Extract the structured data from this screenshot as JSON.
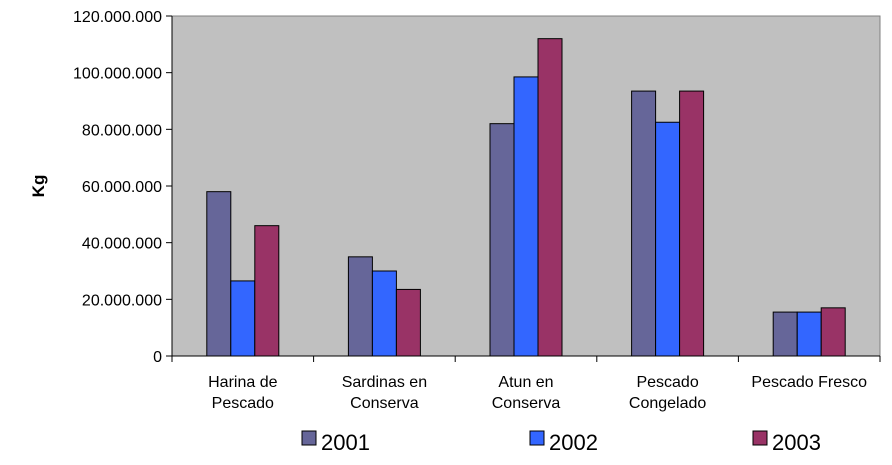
{
  "chart_data": {
    "type": "bar",
    "title": "",
    "xlabel": "",
    "ylabel": "Kg",
    "ylim": [
      0,
      120000000
    ],
    "yticks": [
      0,
      20000000,
      40000000,
      60000000,
      80000000,
      100000000,
      120000000
    ],
    "ytick_labels": [
      "0",
      "20.000.000",
      "40.000.000",
      "60.000.000",
      "80.000.000",
      "100.000.000",
      "120.000.000"
    ],
    "categories": [
      [
        "Harina de",
        "Pescado"
      ],
      [
        "Sardinas en",
        "Conserva"
      ],
      [
        "Atun en",
        "Conserva"
      ],
      [
        "Pescado",
        "Congelado"
      ],
      [
        "Pescado Fresco"
      ]
    ],
    "series": [
      {
        "name": "2001",
        "color": "#666699",
        "values": [
          58000000,
          35000000,
          82000000,
          93500000,
          15500000
        ]
      },
      {
        "name": "2002",
        "color": "#3366FF",
        "values": [
          26500000,
          30000000,
          98500000,
          82500000,
          15500000
        ]
      },
      {
        "name": "2003",
        "color": "#993366",
        "values": [
          46000000,
          23500000,
          112000000,
          93500000,
          17000000
        ]
      }
    ],
    "grid": false,
    "plot_background": "#C0C0C0",
    "legend_position": "bottom"
  }
}
